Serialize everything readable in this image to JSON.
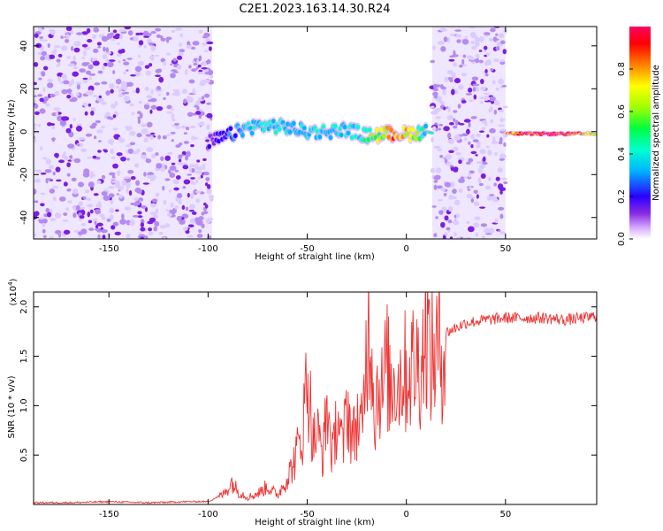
{
  "title": "C2E1.2023.163.14.30.R24",
  "chart_data": [
    {
      "type": "heatmap",
      "xlabel": "Height of straight line (km)",
      "ylabel": "Frequency (Hz)",
      "xlim": [
        -188,
        96
      ],
      "ylim": [
        -50,
        49
      ],
      "xticks": [
        -150,
        -100,
        -50,
        0,
        50
      ],
      "yticks": [
        -40,
        -20,
        0,
        20,
        40
      ],
      "grid": false,
      "noise_regions_x": [
        [
          -188,
          -98
        ],
        [
          13,
          50
        ]
      ],
      "signal_track": [
        {
          "x": -100,
          "freq": -5,
          "amp": 0.22
        },
        {
          "x": -90,
          "freq": -2,
          "amp": 0.3
        },
        {
          "x": -80,
          "freq": 2,
          "amp": 0.4
        },
        {
          "x": -70,
          "freq": 3,
          "amp": 0.42
        },
        {
          "x": -60,
          "freq": 2,
          "amp": 0.4
        },
        {
          "x": -50,
          "freq": 0,
          "amp": 0.38
        },
        {
          "x": -40,
          "freq": 0,
          "amp": 0.45
        },
        {
          "x": -30,
          "freq": 1,
          "amp": 0.4
        },
        {
          "x": -20,
          "freq": -2,
          "amp": 0.5
        },
        {
          "x": -10,
          "freq": -1,
          "amp": 0.78
        },
        {
          "x": 0,
          "freq": -1,
          "amp": 0.8
        },
        {
          "x": 10,
          "freq": 0,
          "amp": 0.45
        },
        {
          "x": 60,
          "freq": -1,
          "amp": 1.0
        },
        {
          "x": 80,
          "freq": -1,
          "amp": 1.0
        },
        {
          "x": 95,
          "freq": -1,
          "amp": 0.75
        }
      ],
      "colorbar": {
        "label": "Normalized spectral amplitude",
        "range": [
          0,
          1
        ],
        "ticks": [
          "0.0",
          "0.2",
          "0.4",
          "0.6",
          "0.8"
        ],
        "colors": [
          "#ffffff",
          "#d8b0ff",
          "#8a2be2",
          "#2b00ff",
          "#00b4ff",
          "#00ffd0",
          "#00ff40",
          "#a0ff00",
          "#ffff00",
          "#ff8000",
          "#ff0000",
          "#ff0066"
        ]
      }
    },
    {
      "type": "line",
      "xlabel": "Height of straight line (km)",
      "ylabel": "SNR (10 * v/v)",
      "scale_label": "(x10",
      "scale_exp": "4",
      "scale_close": ")",
      "xlim": [
        -188,
        96
      ],
      "ylim": [
        0,
        2.15
      ],
      "xticks": [
        -150,
        -100,
        -50,
        0,
        50
      ],
      "yticks": [
        0.5,
        1.0,
        1.5,
        2.0
      ],
      "ytick_labels": [
        "0.5",
        "1.0",
        "1.5",
        "2.0"
      ],
      "grid": false,
      "color": "#ee3333",
      "series": [
        {
          "x": [
            -188,
            -170,
            -150,
            -130,
            -110,
            -100,
            -95,
            -92,
            -88,
            -85,
            -80,
            -75,
            -70,
            -65,
            -60,
            -57,
            -55,
            -52,
            -50,
            -47,
            -45,
            -42,
            -40,
            -37,
            -35,
            -32,
            -30,
            -27,
            -25,
            -22,
            -20,
            -18,
            -16,
            -14,
            -12,
            -10,
            -8,
            -6,
            -4,
            -2,
            0,
            3,
            5,
            8,
            10,
            12,
            15,
            20,
            25,
            30,
            40,
            50,
            60,
            70,
            80,
            90,
            96
          ],
          "y": [
            0.02,
            0.02,
            0.03,
            0.02,
            0.03,
            0.03,
            0.08,
            0.12,
            0.25,
            0.15,
            0.08,
            0.12,
            0.2,
            0.1,
            0.3,
            0.45,
            0.6,
            0.85,
            1.52,
            0.7,
            0.8,
            0.55,
            1.1,
            0.5,
            1.05,
            0.6,
            1.15,
            0.7,
            0.95,
            0.8,
            1.9,
            2.05,
            1.0,
            1.4,
            1.2,
            1.6,
            1.25,
            1.45,
            1.35,
            1.5,
            1.45,
            1.55,
            1.55,
            1.6,
            2.1,
            1.6,
            1.7,
            1.75,
            1.8,
            1.85,
            1.88,
            1.9,
            1.9,
            1.9,
            1.88,
            1.9,
            1.92
          ]
        }
      ]
    }
  ]
}
